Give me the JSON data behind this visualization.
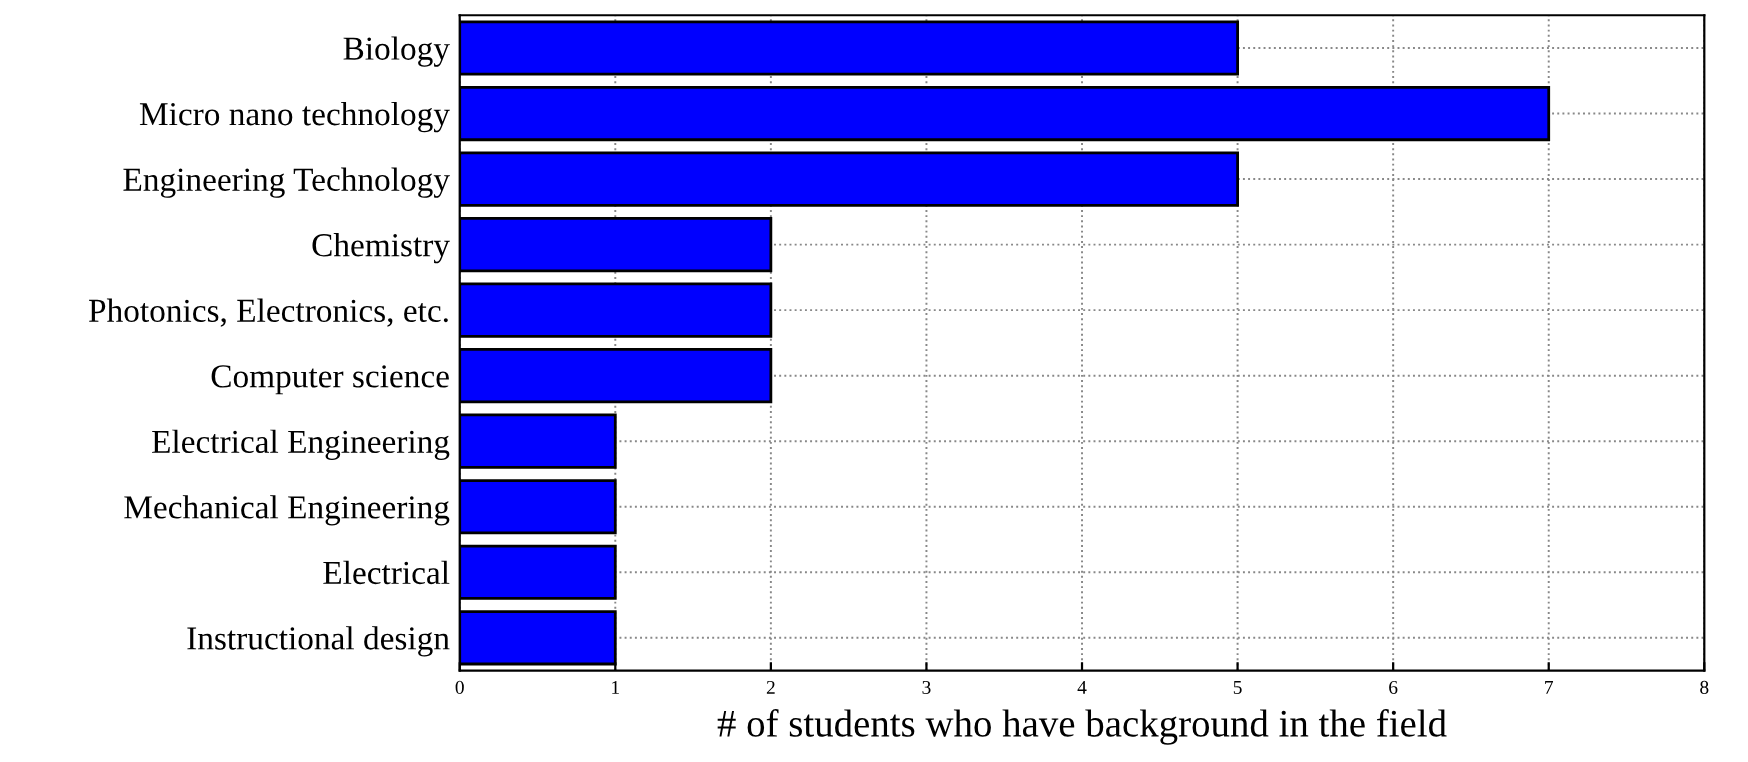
{
  "chart_data": {
    "type": "bar",
    "orientation": "horizontal",
    "xlabel": "# of students who have background in the field",
    "categories": [
      "Biology",
      "Micro nano technology",
      "Engineering Technology",
      "Chemistry",
      "Photonics, Electronics, etc.",
      "Computer science",
      "Electrical Engineering",
      "Mechanical Engineering",
      "Electrical",
      "Instructional design"
    ],
    "values": [
      5,
      7,
      5,
      2,
      2,
      2,
      1,
      1,
      1,
      1
    ],
    "color": "#0000ff",
    "xlim": [
      0,
      8
    ],
    "xticks": [
      0,
      1,
      2,
      3,
      4,
      5,
      6,
      7,
      8
    ],
    "grid": true
  }
}
